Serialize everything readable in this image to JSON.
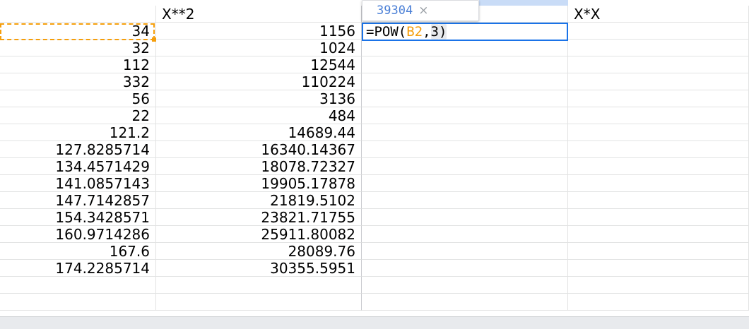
{
  "header": {
    "colB": "X**2",
    "colD": "X*X"
  },
  "rows": [
    {
      "a": "34",
      "b": "1156"
    },
    {
      "a": "32",
      "b": "1024"
    },
    {
      "a": "112",
      "b": "12544"
    },
    {
      "a": "332",
      "b": "110224"
    },
    {
      "a": "56",
      "b": "3136"
    },
    {
      "a": "22",
      "b": "484"
    },
    {
      "a": "121.2",
      "b": "14689.44"
    },
    {
      "a": "127.8285714",
      "b": "16340.14367"
    },
    {
      "a": "134.4571429",
      "b": "18078.72327"
    },
    {
      "a": "141.0857143",
      "b": "19905.17878"
    },
    {
      "a": "147.7142857",
      "b": "21819.5102"
    },
    {
      "a": "154.3428571",
      "b": "23821.71755"
    },
    {
      "a": "160.9714286",
      "b": "25911.80082"
    },
    {
      "a": "167.6",
      "b": "28089.76"
    },
    {
      "a": "174.2285714",
      "b": "30355.5951"
    }
  ],
  "editor": {
    "prefix": "=POW(",
    "ref": "B2",
    "sep": ",",
    "arg": "3",
    "suffix": ")"
  },
  "preview": {
    "value": "39304",
    "close": "×"
  }
}
